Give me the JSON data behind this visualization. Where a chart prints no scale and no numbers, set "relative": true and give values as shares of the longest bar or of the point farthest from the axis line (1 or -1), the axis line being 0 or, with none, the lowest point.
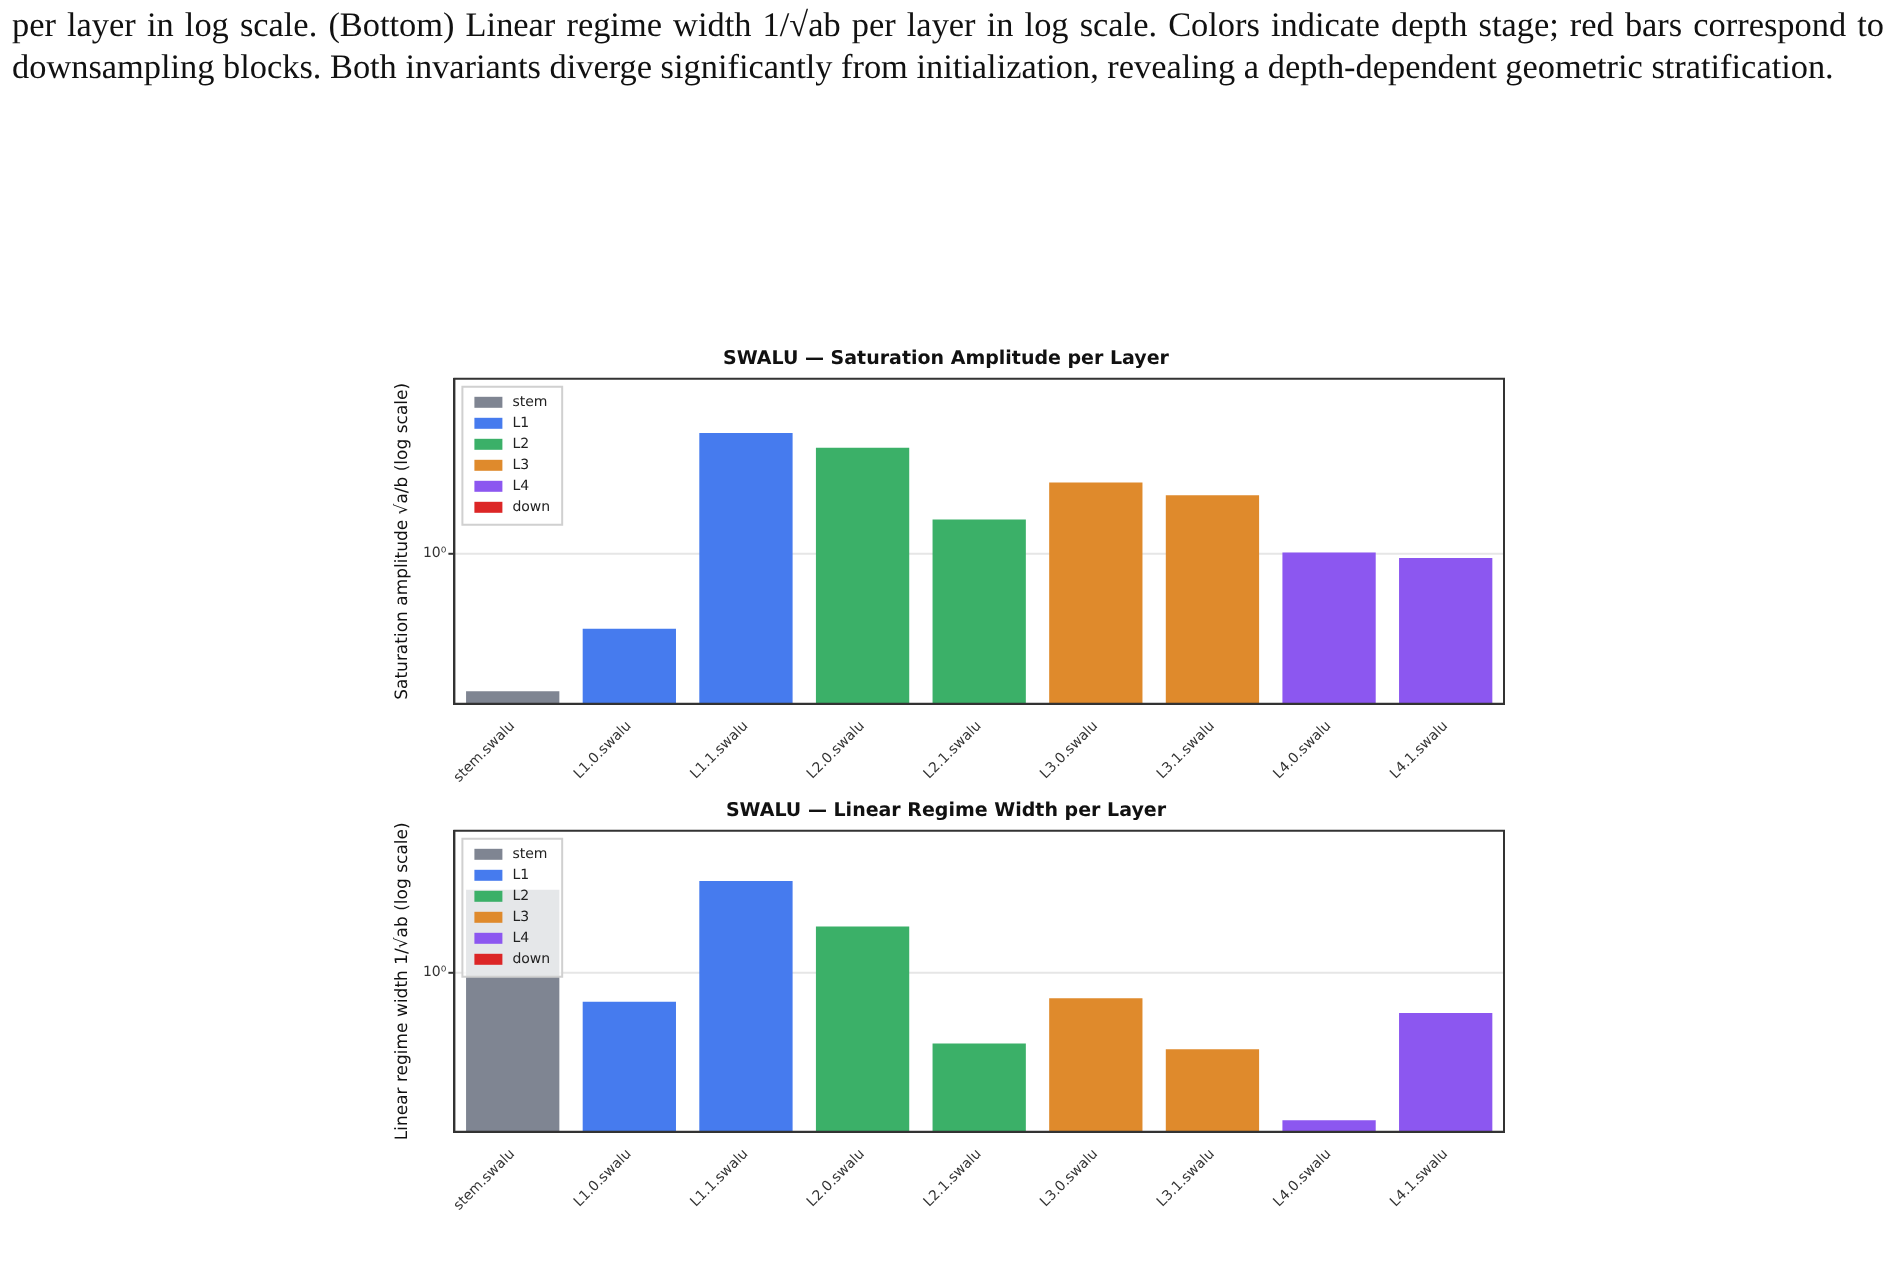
{
  "chart_data": [
    {
      "type": "bar",
      "title": "SWALU — Saturation Amplitude per Layer",
      "ylabel": "Saturation amplitude √a/b (log scale)",
      "categories": [
        "stem.swalu",
        "L1.0.swalu",
        "L1.1.swalu",
        "L2.0.swalu",
        "L2.1.swalu",
        "L3.0.swalu",
        "L3.1.swalu",
        "L4.0.swalu",
        "L4.1.swalu"
      ],
      "series": [
        {
          "name": "stem",
          "color": "#7f8592",
          "values": [
            0.047,
            null,
            null,
            null,
            null,
            null,
            null,
            null,
            null
          ]
        },
        {
          "name": "L1",
          "color": "#467bee",
          "values": [
            null,
            0.277,
            1,
            null,
            null,
            null,
            null,
            null,
            null
          ]
        },
        {
          "name": "L2",
          "color": "#3bb068",
          "values": [
            null,
            null,
            null,
            0.945,
            0.681,
            null,
            null,
            null,
            null
          ]
        },
        {
          "name": "L3",
          "color": "#df8a2c",
          "values": [
            null,
            null,
            null,
            null,
            null,
            0.817,
            0.77,
            null,
            null
          ]
        },
        {
          "name": "L4",
          "color": "#8c57f0",
          "values": [
            null,
            null,
            null,
            null,
            null,
            null,
            null,
            0.559,
            0.538
          ]
        },
        {
          "name": "down",
          "color": "#dc2626",
          "values": [
            null,
            null,
            null,
            null,
            null,
            null,
            null,
            null,
            null
          ]
        }
      ],
      "relative": true,
      "ref_lines": [
        {
          "axis": "y",
          "value": 0.554,
          "color": "#e6e6e6"
        }
      ],
      "legend": "top left",
      "annotations": [
        "10⁰",
        "per layer in log scale. (Bottom) Linear regime width 1/√ab per layer in log scale. Colors indicate depth stage; red bars correspond to downsampling blocks. Both invariants diverge significantly from initialization, revealing a depth-dependent geometric stratification."
      ]
    },
    {
      "type": "bar",
      "title": "SWALU — Linear Regime Width per Layer",
      "ylabel": "Linear regime width 1/√ab (log scale)",
      "categories": [
        "stem.swalu",
        "L1.0.swalu",
        "L1.1.swalu",
        "L2.0.swalu",
        "L2.1.swalu",
        "L3.0.swalu",
        "L3.1.swalu",
        "L4.0.swalu",
        "L4.1.swalu"
      ],
      "series": [
        {
          "name": "stem",
          "color": "#7f8592",
          "values": [
            0.965,
            null,
            null,
            null,
            null,
            null,
            null,
            null,
            null
          ]
        },
        {
          "name": "L1",
          "color": "#467bee",
          "values": [
            null,
            0.519,
            1,
            null,
            null,
            null,
            null,
            null,
            null
          ]
        },
        {
          "name": "L2",
          "color": "#3bb068",
          "values": [
            null,
            null,
            null,
            0.819,
            0.352,
            null,
            null,
            null,
            null
          ]
        },
        {
          "name": "L3",
          "color": "#df8a2c",
          "values": [
            null,
            null,
            null,
            null,
            null,
            0.533,
            0.329,
            null,
            null
          ]
        },
        {
          "name": "L4",
          "color": "#8c57f0",
          "values": [
            null,
            null,
            null,
            null,
            null,
            null,
            null,
            0.046,
            0.474
          ]
        },
        {
          "name": "down",
          "color": "#dc2626",
          "values": [
            null,
            null,
            null,
            null,
            null,
            null,
            null,
            null,
            null
          ]
        }
      ],
      "relative": true,
      "ref_lines": [
        {
          "axis": "y",
          "value": 0.634,
          "color": "#e6e6e6"
        }
      ],
      "legend": "top left",
      "annotations": [
        "10⁰"
      ]
    }
  ]
}
